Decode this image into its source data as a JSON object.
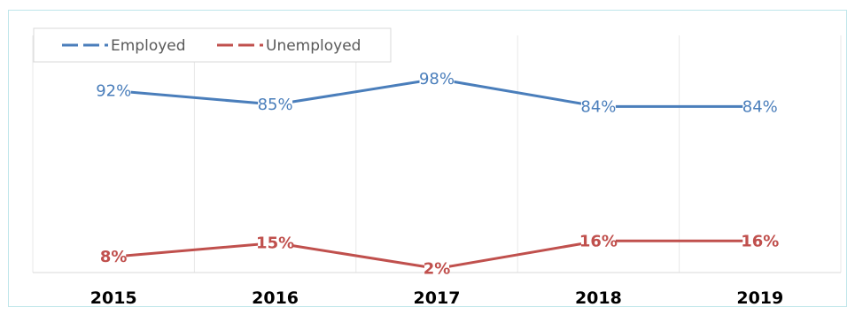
{
  "chart_data": {
    "type": "line",
    "categories": [
      "2015",
      "2016",
      "2017",
      "2018",
      "2019"
    ],
    "series": [
      {
        "name": "Employed",
        "values": [
          92,
          85,
          98,
          84,
          84
        ],
        "labels": [
          "92%",
          "85%",
          "98%",
          "84%",
          "84%"
        ],
        "color": "#4a7ebb"
      },
      {
        "name": "Unemployed",
        "values": [
          8,
          15,
          2,
          16,
          16
        ],
        "labels": [
          "8%",
          "15%",
          "2%",
          "16%",
          "16%"
        ],
        "color": "#c0504d"
      }
    ],
    "ylim": [
      0,
      120
    ],
    "grid": {
      "vertical": true,
      "horizontal": false
    },
    "legend_position": "top-left",
    "title": "",
    "xlabel": "",
    "ylabel": ""
  }
}
